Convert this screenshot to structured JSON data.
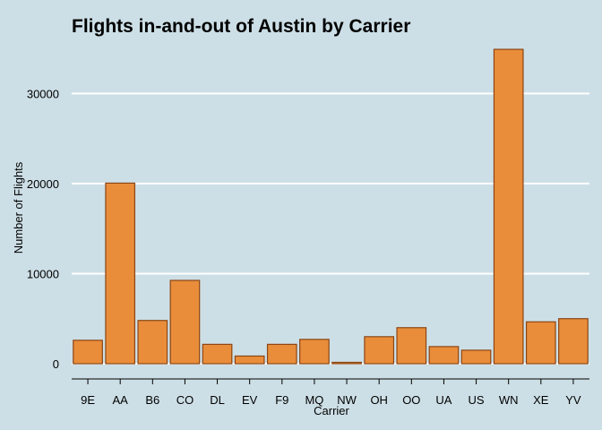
{
  "chart_data": {
    "type": "bar",
    "title": "Flights in-and-out of Austin by Carrier",
    "xlabel": "Carrier",
    "ylabel": "Number of Flights",
    "categories": [
      "9E",
      "AA",
      "B6",
      "CO",
      "DL",
      "EV",
      "F9",
      "MQ",
      "NW",
      "OH",
      "OO",
      "UA",
      "US",
      "WN",
      "XE",
      "YV"
    ],
    "values": [
      2600,
      20050,
      4800,
      9250,
      2150,
      850,
      2150,
      2700,
      150,
      3000,
      4000,
      1900,
      1500,
      34900,
      4650,
      5000
    ],
    "ylim": [
      0,
      36400
    ],
    "yticks": [
      0,
      10000,
      20000,
      30000
    ],
    "grid": "horizontal",
    "colors": {
      "bar_fill": "#e98d3b",
      "bar_stroke": "#8b4513",
      "background": "#cddfe6",
      "grid": "#ffffff"
    }
  }
}
